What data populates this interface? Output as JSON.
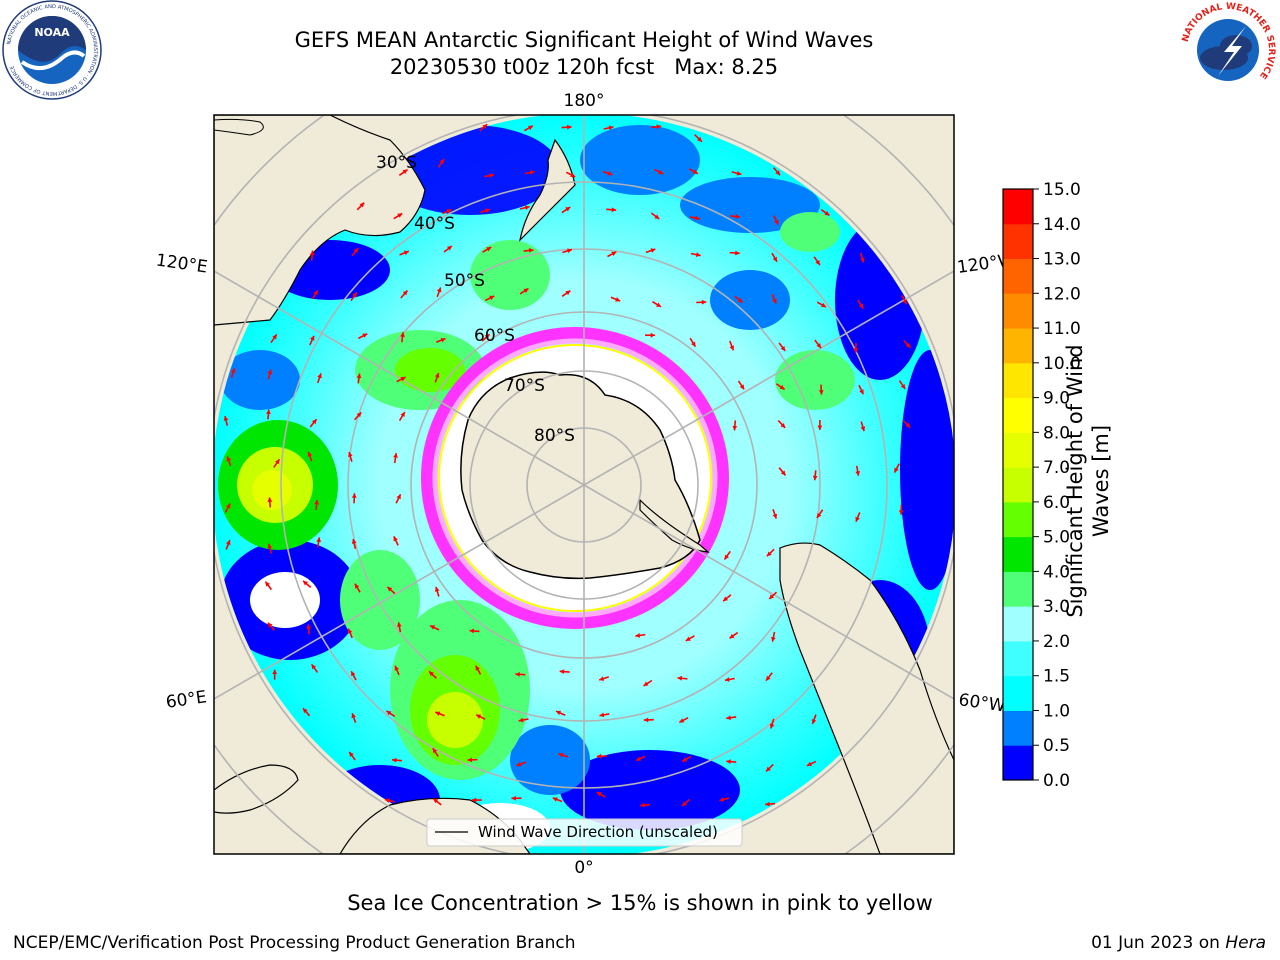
{
  "header": {
    "title_line1": "GEFS MEAN Antarctic Significant Height of Wind Waves",
    "title_line2": "20230530 t00z 120h fcst   Max: 8.25"
  },
  "logos": {
    "left": {
      "name": "noaa-logo",
      "text": "NOAA",
      "ring_text": "NATIONAL OCEANIC AND ATMOSPHERIC ADMINISTRATION · U.S. DEPARTMENT OF COMMERCE"
    },
    "right": {
      "name": "nws-logo",
      "ring_text": "NATIONAL WEATHER SERVICE"
    }
  },
  "map": {
    "projection": "south-polar-stereographic",
    "lat_labels": [
      "30°S",
      "40°S",
      "50°S",
      "60°S",
      "70°S",
      "80°S"
    ],
    "lon_labels": {
      "top": "180°",
      "bottom": "0°",
      "left_upper": "120°E",
      "left_lower": "60°E",
      "right_upper": "120°W",
      "right_lower": "60°W"
    },
    "legend_label": "Wind Wave Direction (unscaled)",
    "arrow_color": "#ff0000",
    "land_color": "#efebd8",
    "ice_colors": [
      "#ff33ff",
      "#ffaaff",
      "#ffff00"
    ]
  },
  "colorbar": {
    "label": "Significant Height of Wind Waves [m]",
    "tick_labels": [
      "0.0",
      "0.5",
      "1.0",
      "1.5",
      "2.0",
      "3.0",
      "4.0",
      "5.0",
      "6.0",
      "7.0",
      "8.0",
      "9.0",
      "10.0",
      "11.0",
      "12.0",
      "13.0",
      "14.0",
      "15.0"
    ],
    "colors": [
      "#0000ff",
      "#0080ff",
      "#00ffff",
      "#40ffff",
      "#a0ffff",
      "#50ff78",
      "#00e600",
      "#64ff00",
      "#c8ff00",
      "#e6ff00",
      "#ffff00",
      "#ffe600",
      "#ffb400",
      "#ff8c00",
      "#ff6400",
      "#ff3200",
      "#ff0000"
    ]
  },
  "caption": "Sea Ice Concentration > 15% is shown in pink to yellow",
  "footer": {
    "left": "NCEP/EMC/Verification Post Processing Product Generation Branch",
    "right_date": "01 Jun 2023 on",
    "right_machine": "Hera"
  }
}
